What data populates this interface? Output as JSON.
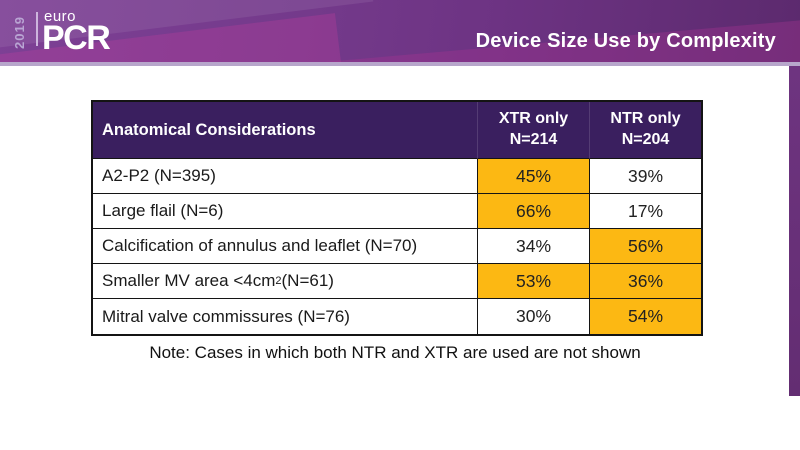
{
  "header": {
    "year": "2019",
    "logo_euro": "euro",
    "logo_pcr": "PCR",
    "title": "Device Size Use by Complexity"
  },
  "table": {
    "header": {
      "anatomical": "Anatomical Considerations",
      "xtr": {
        "line1": "XTR only",
        "line2": "N=214"
      },
      "ntr": {
        "line1": "NTR only",
        "line2": "N=204"
      }
    },
    "rows": [
      {
        "label": "A2-P2 (N=395)",
        "label_sup": "",
        "label_post": "",
        "xtr": "45%",
        "ntr": "39%",
        "xtr_hl": true,
        "ntr_hl": false
      },
      {
        "label": "Large flail (N=6)",
        "label_sup": "",
        "label_post": "",
        "xtr": "66%",
        "ntr": "17%",
        "xtr_hl": true,
        "ntr_hl": false
      },
      {
        "label": "Calcification of annulus and leaflet (N=70)",
        "label_sup": "",
        "label_post": "",
        "xtr": "34%",
        "ntr": "56%",
        "xtr_hl": false,
        "ntr_hl": true
      },
      {
        "label": "Smaller MV area <4cm",
        "label_sup": "2",
        "label_post": " (N=61)",
        "xtr": "53%",
        "ntr": "36%",
        "xtr_hl": true,
        "ntr_hl": true
      },
      {
        "label": "Mitral valve commissures (N=76)",
        "label_sup": "",
        "label_post": "",
        "xtr": "30%",
        "ntr": "54%",
        "xtr_hl": false,
        "ntr_hl": true
      }
    ]
  },
  "note": "Note: Cases in which both NTR and XTR are used are not shown",
  "colors": {
    "band_purple_light": "#7d4095",
    "band_purple_dark": "#5c2a6e",
    "accent_magenta": "#a93a93",
    "light_divider": "#b7a6cb",
    "right_bar": "#632d72",
    "table_header_bg": "#3a1f5f",
    "highlight": "#FCB813",
    "table_border": "#141414",
    "title_color": "#ffffff"
  }
}
